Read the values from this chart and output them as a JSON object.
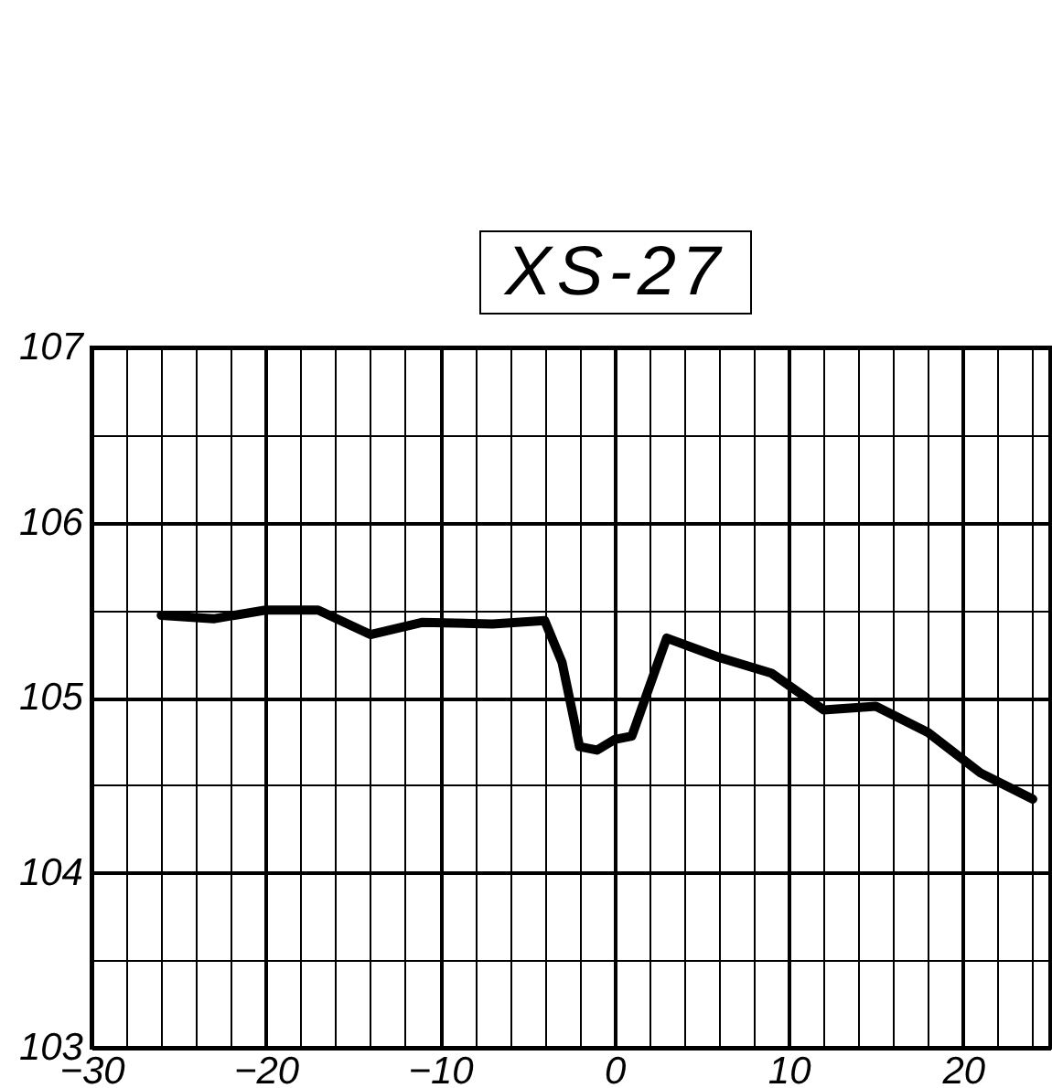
{
  "chart_data": {
    "type": "line",
    "title": "XS-27",
    "x": [
      -26,
      -23,
      -20,
      -17,
      -14,
      -11,
      -7,
      -4,
      -3,
      -2,
      -1,
      0,
      1,
      3,
      6,
      9,
      12,
      15,
      18,
      21,
      24
    ],
    "series": [
      {
        "color": "#000000",
        "values": [
          105.47,
          105.45,
          105.5,
          105.5,
          105.36,
          105.43,
          105.42,
          105.44,
          105.2,
          104.72,
          104.7,
          104.76,
          104.78,
          105.34,
          105.23,
          105.14,
          104.93,
          104.95,
          104.8,
          104.57,
          104.42
        ]
      }
    ],
    "xlim": [
      -30,
      25
    ],
    "ylim": [
      103,
      107
    ],
    "xticks": [
      -30,
      {
        "value": -28,
        "label": null
      },
      {
        "value": -26,
        "label": null
      },
      {
        "value": -24,
        "label": null
      },
      {
        "value": -22,
        "label": null
      },
      -20,
      {
        "value": -18,
        "label": null
      },
      {
        "value": -16,
        "label": null
      },
      {
        "value": -14,
        "label": null
      },
      {
        "value": -12,
        "label": null
      },
      -10,
      {
        "value": -8,
        "label": null
      },
      {
        "value": -6,
        "label": null
      },
      {
        "value": -4,
        "label": null
      },
      {
        "value": -2,
        "label": null
      },
      0,
      {
        "value": 2,
        "label": null
      },
      {
        "value": 4,
        "label": null
      },
      {
        "value": 6,
        "label": null
      },
      {
        "value": 8,
        "label": null
      },
      10,
      {
        "value": 12,
        "label": null
      },
      {
        "value": 14,
        "label": null
      },
      {
        "value": 16,
        "label": null
      },
      {
        "value": 18,
        "label": null
      },
      20,
      {
        "value": 22,
        "label": null
      },
      {
        "value": 24,
        "label": null
      }
    ],
    "yticks": [
      103,
      {
        "value": 103.5,
        "label": null
      },
      104,
      {
        "value": 104.5,
        "label": null
      },
      105,
      {
        "value": 105.5,
        "label": null
      },
      106,
      {
        "value": 106.5,
        "label": null
      },
      107
    ],
    "grid": true,
    "line_style": "solid"
  }
}
